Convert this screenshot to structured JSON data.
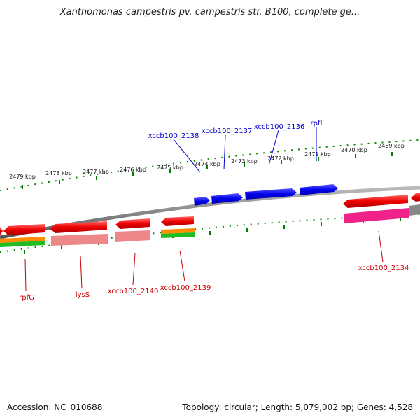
{
  "title": "Xanthomonas campestris pv. campestris str. B100, complete ge...",
  "footer": {
    "accession": "Accession: NC_010688",
    "summary": "Topology: circular; Length: 5,079,002 bp; Genes: 4,528"
  },
  "colors": {
    "forward_cds": "#0000ee",
    "reverse_cds": "#ee0000",
    "tick": "#008000",
    "backbone": "#888888",
    "orange_track": "#ff8c00",
    "green_track": "#22bb22",
    "pink_track": "#ee8888",
    "magenta_track": "#ee2288"
  },
  "kbp_labels": [
    "2479 kbp",
    "2478 kbp",
    "2477 kbp",
    "2476 kbp",
    "2475 kbp",
    "2474 kbp",
    "2473 kbp",
    "2472 kbp",
    "2471 kbp",
    "2470 kbp",
    "2469 kbp"
  ],
  "forward_labels": [
    "xccb100_2138",
    "xccb100_2137",
    "xccb100_2136",
    "rpfI"
  ],
  "reverse_labels": [
    "rpfG",
    "lysS",
    "xccb100_2140",
    "xccb100_2139",
    "xccb100_2134"
  ]
}
